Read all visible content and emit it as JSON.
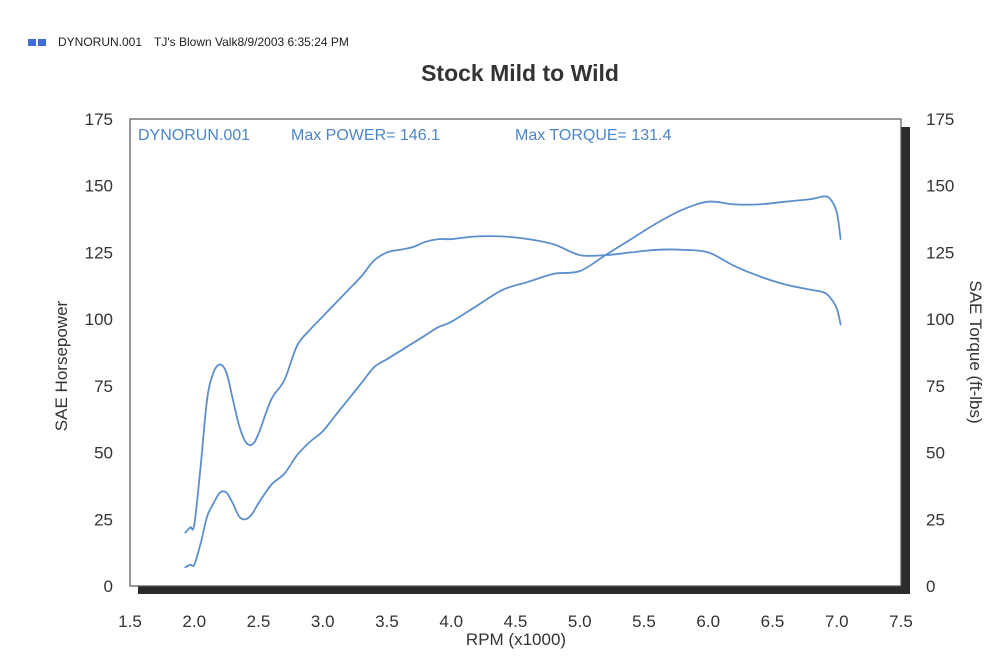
{
  "header": {
    "legend_icon": "legend-swatch",
    "run_label": "DYNORUN.001",
    "description": "TJ's Blown Valk8/9/2003 6:35:24 PM"
  },
  "chart_data": {
    "type": "line",
    "title": "Stock Mild to Wild",
    "xlabel": "RPM (x1000)",
    "ylabel": "SAE Horsepower",
    "y2label": "SAE Torque (ft-lbs)",
    "xlim": [
      1.5,
      7.5
    ],
    "ylim": [
      0,
      175
    ],
    "y2lim": [
      0,
      175
    ],
    "x_ticks": [
      "1.5",
      "2.0",
      "2.5",
      "3.0",
      "3.5",
      "4.0",
      "4.5",
      "5.0",
      "5.5",
      "6.0",
      "6.5",
      "7.0",
      "7.5"
    ],
    "y_ticks": [
      "0",
      "25",
      "50",
      "75",
      "100",
      "125",
      "150",
      "175"
    ],
    "y2_ticks": [
      "0",
      "25",
      "50",
      "75",
      "100",
      "125",
      "150",
      "175"
    ],
    "annotation": {
      "run": "DYNORUN.001",
      "max_power": "Max POWER= 146.1",
      "max_torque": "Max TORQUE= 131.4"
    },
    "line_color": "#5b8fce",
    "series": [
      {
        "metric": "SAE Horsepower",
        "x": [
          1.93,
          1.97,
          2.0,
          2.05,
          2.1,
          2.15,
          2.2,
          2.25,
          2.3,
          2.35,
          2.4,
          2.45,
          2.5,
          2.6,
          2.7,
          2.8,
          2.9,
          3.0,
          3.1,
          3.2,
          3.3,
          3.4,
          3.5,
          3.6,
          3.7,
          3.8,
          3.9,
          4.0,
          4.2,
          4.4,
          4.6,
          4.8,
          5.0,
          5.2,
          5.4,
          5.6,
          5.8,
          6.0,
          6.2,
          6.4,
          6.6,
          6.8,
          6.9,
          6.95,
          7.0,
          7.03
        ],
        "values": [
          7,
          8,
          8,
          16,
          26,
          31,
          35,
          35,
          31,
          26,
          25,
          27,
          31,
          38,
          42,
          49,
          54,
          58,
          64,
          70,
          76,
          82,
          85,
          88,
          91,
          94,
          97,
          99,
          105,
          111,
          114,
          117,
          118,
          124,
          130,
          136,
          141,
          144,
          143,
          143,
          144,
          145,
          146,
          145,
          140,
          130
        ]
      },
      {
        "metric": "SAE Torque (ft-lbs)",
        "x": [
          1.93,
          1.97,
          2.0,
          2.05,
          2.1,
          2.15,
          2.2,
          2.25,
          2.3,
          2.35,
          2.4,
          2.45,
          2.5,
          2.6,
          2.7,
          2.8,
          2.9,
          3.0,
          3.1,
          3.2,
          3.3,
          3.4,
          3.5,
          3.6,
          3.7,
          3.8,
          3.9,
          4.0,
          4.2,
          4.4,
          4.6,
          4.8,
          5.0,
          5.2,
          5.4,
          5.6,
          5.8,
          6.0,
          6.2,
          6.4,
          6.6,
          6.8,
          6.9,
          6.95,
          7.0,
          7.03
        ],
        "values": [
          20,
          22,
          23,
          45,
          70,
          80,
          83,
          80,
          70,
          60,
          54,
          53,
          57,
          70,
          77,
          90,
          96,
          101,
          106,
          111,
          116,
          122,
          125,
          126,
          127,
          129,
          130,
          130,
          131,
          131,
          130,
          128,
          124,
          124,
          125,
          126,
          126,
          125,
          120,
          116,
          113,
          111,
          110,
          108,
          104,
          98
        ]
      }
    ]
  }
}
